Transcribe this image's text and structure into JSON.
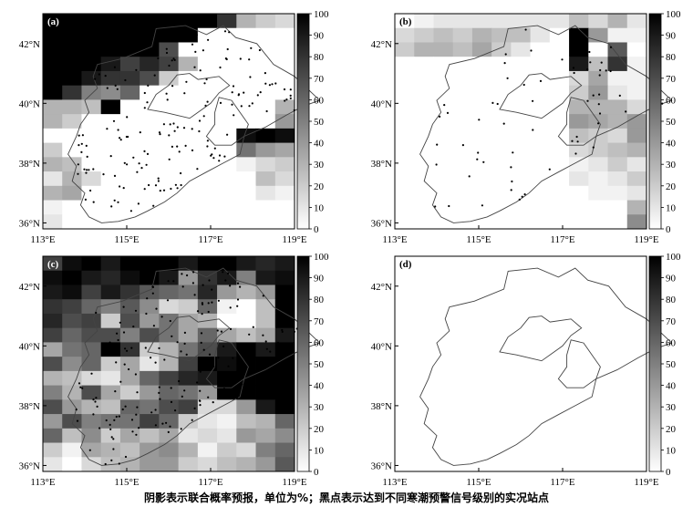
{
  "caption": "阴影表示联合概率预报，单位为%；黑点表示达到不同寒潮预警信号级别的实况站点",
  "colorbar": {
    "ticks": [
      "0",
      "10",
      "20",
      "30",
      "40",
      "50",
      "60",
      "70",
      "80",
      "90",
      "100"
    ],
    "min": 0,
    "max": 100
  },
  "axes": {
    "x_ticks": [
      "113°E",
      "115°E",
      "117°E",
      "119°E"
    ],
    "y_ticks": [
      "36°N",
      "38°N",
      "40°N",
      "42°N"
    ],
    "lon_range": [
      113,
      119
    ],
    "lat_range": [
      35.8,
      43
    ]
  },
  "panels": [
    {
      "label": "(a)",
      "grid": [
        [
          100,
          100,
          100,
          100,
          100,
          100,
          100,
          100,
          100,
          80,
          30,
          20,
          15
        ],
        [
          100,
          100,
          100,
          100,
          100,
          100,
          100,
          100,
          0,
          0,
          0,
          0,
          0
        ],
        [
          100,
          100,
          100,
          100,
          100,
          100,
          70,
          0,
          0,
          0,
          0,
          0,
          0
        ],
        [
          100,
          100,
          100,
          90,
          75,
          85,
          75,
          30,
          0,
          0,
          0,
          0,
          0
        ],
        [
          100,
          100,
          90,
          80,
          80,
          70,
          20,
          0,
          0,
          0,
          0,
          0,
          0
        ],
        [
          100,
          80,
          50,
          45,
          60,
          0,
          0,
          0,
          0,
          0,
          0,
          0,
          0
        ],
        [
          30,
          30,
          25,
          100,
          0,
          0,
          0,
          0,
          0,
          0,
          0,
          0,
          30
        ],
        [
          30,
          20,
          0,
          0,
          0,
          0,
          0,
          0,
          0,
          0,
          0,
          0,
          40
        ],
        [
          0,
          0,
          0,
          0,
          0,
          0,
          0,
          0,
          0,
          0,
          95,
          100,
          95
        ],
        [
          20,
          0,
          0,
          0,
          0,
          0,
          0,
          0,
          0,
          0,
          55,
          40,
          35
        ],
        [
          30,
          25,
          0,
          0,
          0,
          0,
          0,
          0,
          0,
          0,
          5,
          15,
          20
        ],
        [
          10,
          30,
          15,
          0,
          0,
          0,
          0,
          0,
          0,
          0,
          0,
          25,
          15
        ],
        [
          30,
          35,
          0,
          0,
          0,
          0,
          0,
          0,
          0,
          0,
          0,
          10,
          5
        ],
        [
          5,
          0,
          0,
          0,
          0,
          0,
          0,
          0,
          0,
          0,
          0,
          0,
          0
        ],
        [
          10,
          0,
          0,
          0,
          0,
          0,
          0,
          0,
          0,
          0,
          0,
          0,
          0
        ]
      ],
      "stations": "many"
    },
    {
      "label": "(b)",
      "grid": [
        [
          0,
          5,
          10,
          10,
          10,
          10,
          10,
          10,
          10,
          25,
          15,
          30,
          10
        ],
        [
          15,
          20,
          25,
          20,
          30,
          25,
          25,
          10,
          0,
          100,
          40,
          5,
          5
        ],
        [
          20,
          30,
          30,
          25,
          35,
          20,
          10,
          0,
          0,
          100,
          0,
          65,
          0
        ],
        [
          0,
          0,
          0,
          0,
          0,
          0,
          0,
          0,
          0,
          90,
          25,
          80,
          5
        ],
        [
          0,
          0,
          0,
          0,
          0,
          0,
          0,
          0,
          0,
          15,
          35,
          5,
          5
        ],
        [
          0,
          0,
          0,
          0,
          0,
          0,
          0,
          0,
          0,
          20,
          40,
          10,
          5
        ],
        [
          0,
          0,
          0,
          0,
          0,
          0,
          0,
          0,
          0,
          30,
          30,
          30,
          15
        ],
        [
          0,
          0,
          0,
          0,
          0,
          0,
          0,
          0,
          0,
          40,
          35,
          30,
          40
        ],
        [
          0,
          0,
          0,
          0,
          0,
          0,
          0,
          0,
          0,
          25,
          20,
          15,
          40
        ],
        [
          0,
          0,
          0,
          0,
          0,
          0,
          0,
          0,
          0,
          15,
          20,
          25,
          30
        ],
        [
          0,
          0,
          0,
          0,
          0,
          0,
          0,
          0,
          0,
          5,
          10,
          20,
          10
        ],
        [
          0,
          0,
          0,
          0,
          0,
          0,
          0,
          0,
          0,
          10,
          5,
          10,
          20
        ],
        [
          0,
          0,
          0,
          0,
          0,
          0,
          0,
          0,
          0,
          0,
          5,
          5,
          10
        ],
        [
          0,
          0,
          0,
          0,
          0,
          0,
          0,
          0,
          0,
          0,
          0,
          0,
          30
        ],
        [
          0,
          0,
          0,
          0,
          0,
          0,
          0,
          0,
          0,
          0,
          0,
          0,
          45
        ]
      ],
      "stations": "few"
    },
    {
      "label": "(c)",
      "grid": [
        [
          75,
          95,
          100,
          90,
          100,
          100,
          100,
          90,
          100,
          100,
          90,
          85,
          90
        ],
        [
          95,
          100,
          90,
          85,
          95,
          100,
          90,
          40,
          80,
          90,
          50,
          90,
          95
        ],
        [
          90,
          95,
          75,
          90,
          80,
          65,
          60,
          55,
          85,
          40,
          30,
          40,
          100
        ],
        [
          80,
          75,
          60,
          50,
          65,
          45,
          15,
          20,
          60,
          5,
          0,
          25,
          100
        ],
        [
          85,
          70,
          75,
          20,
          70,
          40,
          55,
          35,
          30,
          0,
          0,
          25,
          100
        ],
        [
          75,
          60,
          70,
          70,
          50,
          70,
          55,
          35,
          60,
          35,
          25,
          35,
          90
        ],
        [
          35,
          55,
          60,
          100,
          80,
          20,
          30,
          55,
          70,
          90,
          100,
          90,
          100
        ],
        [
          70,
          45,
          60,
          20,
          35,
          10,
          30,
          75,
          100,
          95,
          100,
          100,
          100
        ],
        [
          30,
          25,
          15,
          10,
          35,
          60,
          75,
          85,
          90,
          100,
          100,
          100,
          100
        ],
        [
          50,
          30,
          70,
          35,
          20,
          40,
          60,
          55,
          40,
          100,
          100,
          100,
          100
        ],
        [
          70,
          40,
          30,
          25,
          60,
          55,
          70,
          75,
          15,
          15,
          40,
          90,
          100
        ],
        [
          40,
          70,
          50,
          55,
          55,
          75,
          60,
          20,
          10,
          5,
          25,
          30,
          60
        ],
        [
          60,
          25,
          45,
          20,
          35,
          25,
          35,
          10,
          15,
          10,
          40,
          35,
          45
        ],
        [
          20,
          5,
          35,
          30,
          25,
          40,
          45,
          30,
          5,
          20,
          15,
          50,
          60
        ],
        [
          10,
          0,
          15,
          25,
          30,
          40,
          40,
          20,
          15,
          25,
          30,
          40,
          65
        ]
      ],
      "stations": "many"
    },
    {
      "label": "(d)",
      "grid": [],
      "stations": "none"
    }
  ]
}
